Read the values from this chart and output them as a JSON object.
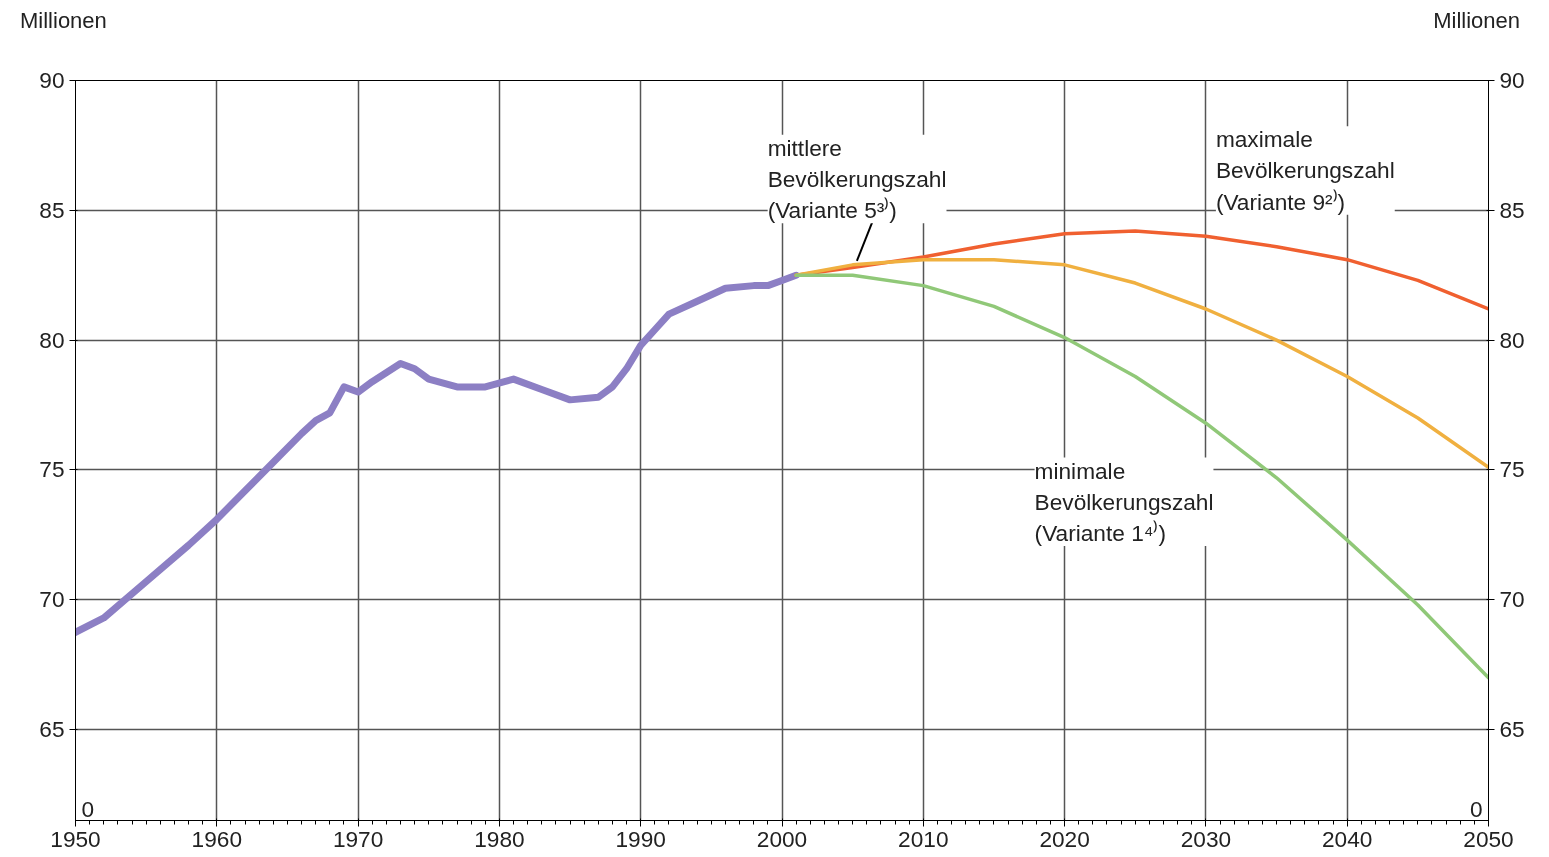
{
  "chart_data": {
    "type": "line",
    "ylabel": "Millionen",
    "y2label": "Millionen",
    "xlim": [
      1950,
      2050
    ],
    "xticks": [
      1950,
      1960,
      1970,
      1980,
      1990,
      2000,
      2010,
      2020,
      2030,
      2040,
      2050
    ],
    "ylim": [
      61.5,
      90
    ],
    "yticks": [
      65,
      70,
      75,
      80,
      85,
      90
    ],
    "y2lim": [
      61.5,
      90
    ],
    "y2ticks": [
      65,
      70,
      75,
      80,
      85,
      90
    ],
    "annotations": [
      "0",
      "0"
    ],
    "grid": true,
    "legend": false,
    "marker": "none",
    "line_style": "solid",
    "series": [
      {
        "color": "#8c7fc4",
        "x": [
          1950,
          1952,
          1955,
          1958,
          1960,
          1962,
          1964,
          1966,
          1967,
          1968,
          1969,
          1970,
          1971,
          1973,
          1974,
          1975,
          1977,
          1979,
          1981,
          1983,
          1985,
          1987,
          1988,
          1989,
          1990,
          1991,
          1992,
          1994,
          1996,
          1998,
          1999,
          2000,
          2001
        ],
        "values": [
          68.75,
          69.3,
          70.7,
          72.1,
          73.1,
          74.2,
          75.3,
          76.4,
          76.9,
          77.2,
          78.2,
          78.0,
          78.4,
          79.1,
          78.9,
          78.5,
          78.2,
          78.2,
          78.5,
          78.1,
          77.7,
          77.8,
          78.2,
          78.9,
          79.8,
          80.4,
          81.0,
          81.5,
          82.0,
          82.1,
          82.1,
          82.3,
          82.5
        ]
      },
      {
        "name": "maximale\nBevölkerungszahl\n(Variante 9²⁾)",
        "color": "#f06030",
        "x": [
          2001,
          2005,
          2010,
          2015,
          2020,
          2025,
          2030,
          2035,
          2040,
          2045,
          2050
        ],
        "values": [
          82.5,
          82.8,
          83.2,
          83.7,
          84.1,
          84.2,
          84.0,
          83.6,
          83.1,
          82.3,
          81.2
        ]
      },
      {
        "name": "mittlere\nBevölkerungszahl\n(Variante 5³⁾)",
        "color": "#f0b040",
        "x": [
          2001,
          2005,
          2010,
          2015,
          2020,
          2025,
          2030,
          2035,
          2040,
          2045,
          2050
        ],
        "values": [
          82.5,
          82.9,
          83.1,
          83.1,
          82.9,
          82.2,
          81.2,
          80.0,
          78.6,
          77.0,
          75.1
        ]
      },
      {
        "name": "minimale\nBevölkerungszahl\n(Variante 1⁴⁾)",
        "color": "#90c878",
        "x": [
          2001,
          2005,
          2010,
          2015,
          2020,
          2025,
          2030,
          2035,
          2040,
          2045,
          2050
        ],
        "values": [
          82.5,
          82.5,
          82.1,
          81.3,
          80.1,
          78.6,
          76.8,
          74.7,
          72.3,
          69.8,
          67.0
        ]
      }
    ]
  }
}
